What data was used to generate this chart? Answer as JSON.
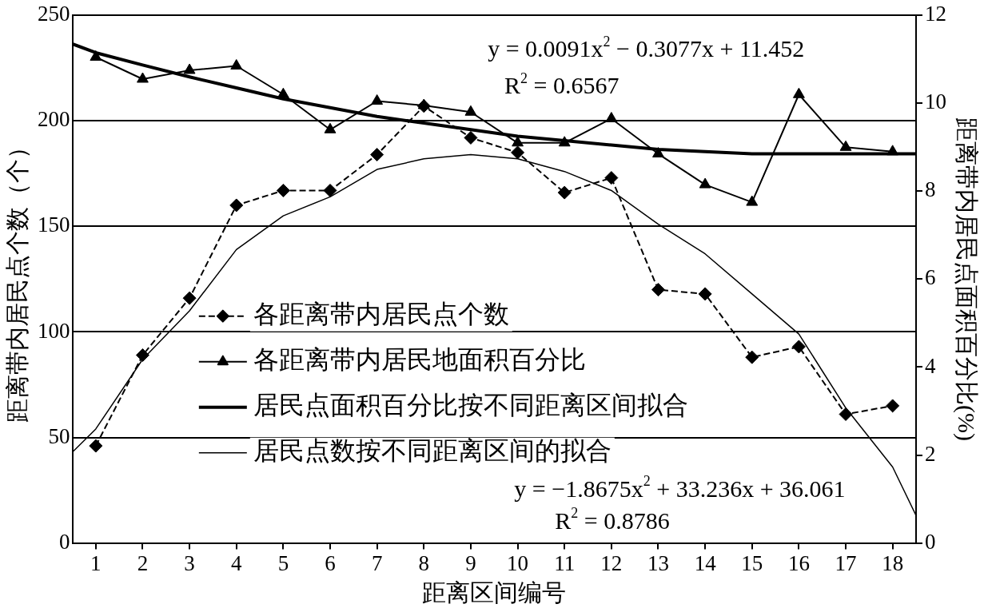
{
  "chart_data": {
    "type": "line",
    "xlabel": "距离区间编号",
    "ylabel": "距离带内居民点个数（个）",
    "y2label": "距离带内居民点面积百分比(%)",
    "x": [
      1,
      2,
      3,
      4,
      5,
      6,
      7,
      8,
      9,
      10,
      11,
      12,
      13,
      14,
      15,
      16,
      17,
      18
    ],
    "xlim": [
      0.5,
      18.5
    ],
    "xticks": [
      1,
      2,
      3,
      4,
      5,
      6,
      7,
      8,
      9,
      10,
      11,
      12,
      13,
      14,
      15,
      16,
      17,
      18
    ],
    "ylim": [
      0,
      250
    ],
    "yticks": [
      0,
      50,
      100,
      150,
      200,
      250
    ],
    "y2lim": [
      0,
      12
    ],
    "y2ticks": [
      0,
      2,
      4,
      6,
      8,
      10,
      12
    ],
    "grid": "y",
    "legend": "left",
    "series": [
      {
        "name": "各距离带内居民点个数",
        "color": "#000000",
        "marker": "diamond",
        "line_style": "dashed",
        "axis": "y",
        "values": [
          46,
          89,
          116,
          160,
          167,
          167,
          184,
          207,
          192,
          185,
          166,
          173,
          120,
          118,
          88,
          93,
          61,
          65
        ]
      },
      {
        "name": "各距离带内居民地面积百分比",
        "color": "#000000",
        "marker": "triangle",
        "line_style": "solid",
        "axis": "y2",
        "values": [
          11.05,
          10.55,
          10.75,
          10.85,
          10.2,
          9.4,
          10.05,
          9.95,
          9.8,
          9.1,
          9.1,
          9.65,
          8.85,
          8.15,
          7.75,
          10.2,
          9.0,
          8.9
        ]
      },
      {
        "name": "居民点面积百分比按不同距离区间拟合",
        "color": "#000000",
        "marker": "none",
        "line_style": "solid",
        "axis": "y2",
        "x": [
          0.5,
          1,
          2,
          3,
          4,
          5,
          6,
          7,
          8,
          9,
          10,
          11,
          12,
          13,
          14,
          15,
          16,
          17,
          18,
          18.5
        ],
        "values": [
          11.35,
          11.15,
          10.87,
          10.6,
          10.35,
          10.1,
          9.9,
          9.7,
          9.55,
          9.4,
          9.25,
          9.15,
          9.05,
          8.95,
          8.9,
          8.85,
          8.85,
          8.85,
          8.85,
          8.85
        ]
      },
      {
        "name": "居民点数按不同距离区间的拟合",
        "color": "#000000",
        "marker": "none",
        "line_style": "solid",
        "axis": "y",
        "x": [
          0.5,
          1,
          2,
          3,
          4,
          5,
          6,
          7,
          8,
          9,
          10,
          11,
          12,
          13,
          14,
          15,
          16,
          17,
          18,
          18.5
        ],
        "values": [
          43,
          54,
          87,
          110,
          139,
          155,
          164,
          177,
          182,
          184,
          182,
          176,
          167,
          151,
          137,
          118,
          99,
          64,
          36,
          13
        ]
      }
    ],
    "annotations": [
      "y = 0.0091x$^{2}$ − 0.3077x + 11.452",
      "R$^{2}$ = 0.6567",
      "y = −1.8675x$^{2}$ + 33.236x + 36.061",
      "R$^{2}$ = 0.8786"
    ]
  }
}
